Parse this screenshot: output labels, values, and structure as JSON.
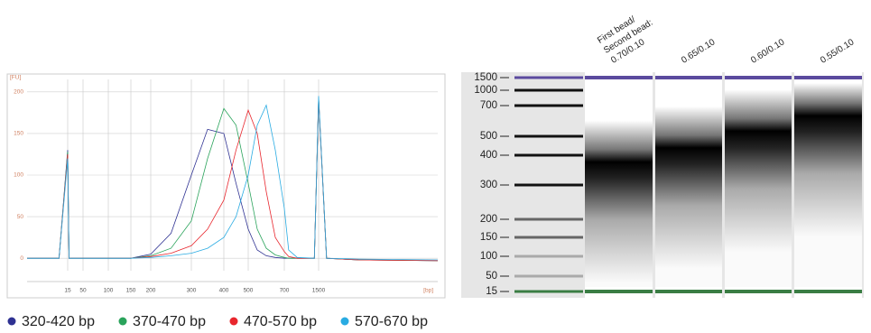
{
  "chart_data": [
    {
      "type": "line",
      "y_label": "[FU]",
      "x_label": "[bp]",
      "xlim": [
        1,
        3000
      ],
      "xticks": [
        15,
        50,
        100,
        150,
        200,
        300,
        400,
        500,
        700,
        1500
      ],
      "ylim": [
        -15,
        215
      ],
      "yticks": [
        0,
        50,
        100,
        150,
        200
      ],
      "grid": true,
      "x": [
        1,
        12,
        15,
        18,
        50,
        100,
        150,
        200,
        250,
        300,
        350,
        400,
        450,
        500,
        550,
        600,
        650,
        700,
        800,
        1000,
        1400,
        1500,
        1600,
        2000,
        3000
      ],
      "series": [
        {
          "name": "320-420 bp",
          "color": "#2e3192",
          "values": [
            0,
            0,
            130,
            0,
            0,
            0,
            0,
            5,
            30,
            100,
            155,
            150,
            90,
            35,
            10,
            3,
            1,
            0,
            0,
            0,
            0,
            190,
            0,
            -2,
            -3
          ]
        },
        {
          "name": "370-470 bp",
          "color": "#2aa35b",
          "values": [
            0,
            0,
            128,
            0,
            0,
            0,
            0,
            3,
            12,
            45,
            120,
            180,
            160,
            90,
            35,
            12,
            4,
            1,
            0,
            0,
            0,
            192,
            0,
            -2,
            -3
          ]
        },
        {
          "name": "470-570 bp",
          "color": "#e8262d",
          "values": [
            0,
            0,
            125,
            0,
            0,
            0,
            0,
            2,
            6,
            15,
            35,
            70,
            130,
            178,
            150,
            80,
            25,
            8,
            2,
            0,
            0,
            193,
            0,
            -2,
            -3
          ]
        },
        {
          "name": "570-670 bp",
          "color": "#29abe2",
          "values": [
            0,
            0,
            120,
            0,
            0,
            0,
            0,
            1,
            3,
            6,
            12,
            25,
            50,
            100,
            160,
            184,
            130,
            60,
            10,
            1,
            0,
            195,
            0,
            -1,
            -2
          ]
        }
      ]
    },
    {
      "type": "gel",
      "lane_header": [
        "First bead/",
        "Second bead:"
      ],
      "yticks": [
        1500,
        1000,
        700,
        500,
        400,
        300,
        200,
        150,
        100,
        50,
        15
      ],
      "series": [
        {
          "name": "0.70/0.10",
          "values": [
            365
          ]
        },
        {
          "name": "0.65/0.10",
          "values": [
            420
          ]
        },
        {
          "name": "0.60/0.10",
          "values": [
            510
          ]
        },
        {
          "name": "0.55/0.10",
          "values": [
            610
          ]
        }
      ]
    }
  ]
}
